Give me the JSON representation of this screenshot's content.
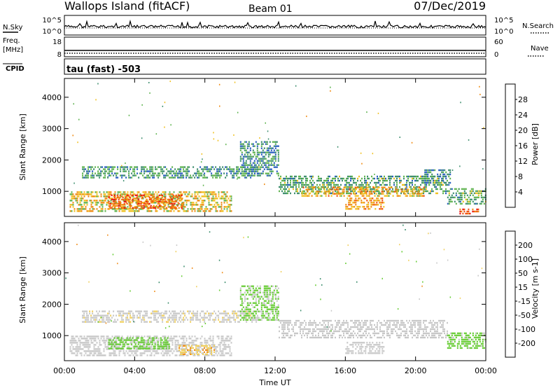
{
  "header": {
    "station": "Wallops Island (fitACF)",
    "beam": "Beam 01",
    "date": "07/Dec/2019"
  },
  "strip_nsky": {
    "label": "N.Sky",
    "top_tick": "10^5",
    "bottom_tick": "10^0",
    "right_top_tick": "10^5",
    "right_bottom_tick": "10^0",
    "right_label": "N.Search"
  },
  "strip_freq": {
    "label_line1": "Freq.",
    "label_line2": "[MHz]",
    "top_tick": "18",
    "bottom_tick": "8",
    "right_top_tick": "60",
    "right_bottom_tick": "0",
    "right_label": "Nave"
  },
  "strip_cpid": {
    "label": "CPID",
    "mode": "tau (fast) -503"
  },
  "chart_data": [
    {
      "type": "heatmap",
      "name": "power",
      "ylabel": "Slant Range [km]",
      "yticks": [
        "1000",
        "2000",
        "3000",
        "4000"
      ],
      "ylim": [
        200,
        4600
      ],
      "colorbar_label": "Power [dB]",
      "colorbar_ticks": [
        "4",
        "8",
        "12",
        "16",
        "20",
        "24",
        "28"
      ],
      "colorbar_colors": [
        "#1a1aff",
        "#2a5fbf",
        "#3f8f6f",
        "#5fb34f",
        "#f0c020",
        "#f08a10",
        "#f05010",
        "#e81010"
      ],
      "regions": [
        {
          "t0": 0.3,
          "t1": 9.5,
          "r0": 350,
          "r1": 1000,
          "value": 18
        },
        {
          "t0": 2.5,
          "t1": 6.8,
          "r0": 450,
          "r1": 900,
          "value": 25
        },
        {
          "t0": 1.0,
          "t1": 11.0,
          "r0": 1450,
          "r1": 1800,
          "value": 11
        },
        {
          "t0": 10.0,
          "t1": 12.2,
          "r0": 1500,
          "r1": 2600,
          "value": 10
        },
        {
          "t0": 12.2,
          "t1": 21.8,
          "r0": 950,
          "r1": 1500,
          "value": 12
        },
        {
          "t0": 13.5,
          "t1": 20.5,
          "r0": 850,
          "r1": 1150,
          "value": 20
        },
        {
          "t0": 16.0,
          "t1": 18.2,
          "r0": 450,
          "r1": 800,
          "value": 21
        },
        {
          "t0": 20.5,
          "t1": 22.0,
          "r0": 1200,
          "r1": 1700,
          "value": 9
        },
        {
          "t0": 21.8,
          "t1": 24.0,
          "r0": 600,
          "r1": 1100,
          "value": 12
        },
        {
          "t0": 22.5,
          "t1": 23.6,
          "r0": 250,
          "r1": 450,
          "value": 26
        }
      ]
    },
    {
      "type": "heatmap",
      "name": "velocity",
      "ylabel": "Slant Range [km]",
      "yticks": [
        "1000",
        "2000",
        "3000",
        "4000"
      ],
      "ylim": [
        200,
        4600
      ],
      "colorbar_label": "Velocity [m s-1]",
      "colorbar_ticks": [
        "200",
        "100",
        "50",
        "15",
        "-15",
        "-50",
        "-100",
        "-200"
      ],
      "colorbar_colors": [
        "#2040d0",
        "#2e6aa0",
        "#3f8f6f",
        "#66cc33",
        "#c8c8c8",
        "#f0d060",
        "#f09020",
        "#f05010",
        "#e81010"
      ],
      "regions": [
        {
          "t0": 0.3,
          "t1": 9.5,
          "r0": 350,
          "r1": 1000,
          "value": 0
        },
        {
          "t0": 2.5,
          "t1": 6.0,
          "r0": 550,
          "r1": 950,
          "value": 35
        },
        {
          "t0": 6.5,
          "t1": 8.5,
          "r0": 400,
          "r1": 700,
          "value": -40
        },
        {
          "t0": 1.0,
          "t1": 11.0,
          "r0": 1450,
          "r1": 1800,
          "value": -5
        },
        {
          "t0": 10.0,
          "t1": 12.2,
          "r0": 1500,
          "r1": 2600,
          "value": 20
        },
        {
          "t0": 12.2,
          "t1": 21.8,
          "r0": 950,
          "r1": 1500,
          "value": 0
        },
        {
          "t0": 16.0,
          "t1": 18.2,
          "r0": 450,
          "r1": 800,
          "value": 0
        },
        {
          "t0": 21.8,
          "t1": 24.0,
          "r0": 600,
          "r1": 1100,
          "value": 25
        }
      ]
    }
  ],
  "x_axis": {
    "ticks": [
      "00:00",
      "04:00",
      "08:00",
      "12:00",
      "16:00",
      "20:00",
      "00:00"
    ],
    "tick_hours": [
      0,
      4,
      8,
      12,
      16,
      20,
      24
    ],
    "label": "Time UT",
    "xlim": [
      0,
      24
    ]
  }
}
